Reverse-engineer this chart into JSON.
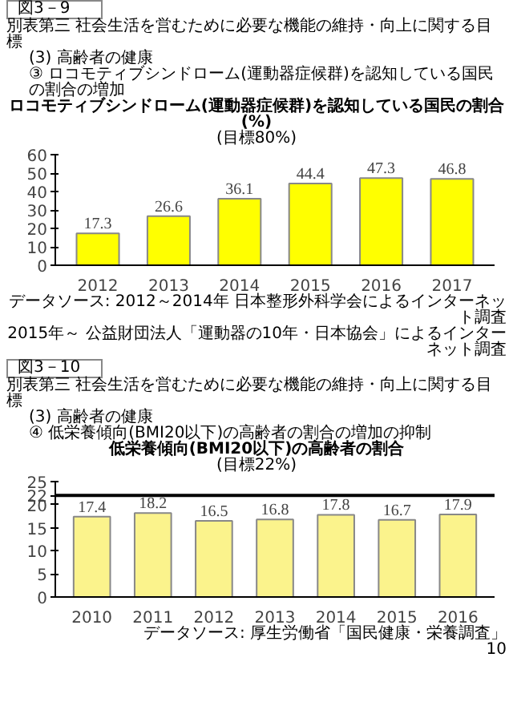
{
  "chart_data": [
    {
      "type": "bar",
      "title": "ロコモティブシンドローム(運動器症候群)を認知している国民の割合(%)",
      "subtitle": "(目標80%)",
      "annotations": [
        "図3－9",
        "別表第三 社会生活を営むために必要な機能の維持・向上に関する目標",
        "(3) 高齢者の健康",
        "③ ロコモティブシンドローム(運動器症候群)を認知している国民の割合の増加",
        "データソース: 2012～2014年 日本整形外科学会によるインターネット調査",
        "2015年～ 公益財団法人「運動器の10年・日本協会」によるインターネット調査"
      ],
      "categories": [
        "2012",
        "2013",
        "2014",
        "2015",
        "2016",
        "2017"
      ],
      "values": [
        17.3,
        26.6,
        36.1,
        44.4,
        47.3,
        46.8
      ],
      "color": "#ffff00",
      "data_labels": true,
      "ylim": [
        0,
        60
      ],
      "yticks": [
        0,
        10,
        20,
        30,
        40,
        50,
        60
      ],
      "grid": false
    },
    {
      "type": "bar",
      "title": "低栄養傾向(BMI20以下)の高齢者の割合",
      "subtitle": "(目標22%)",
      "annotations": [
        "図3－10",
        "別表第三 社会生活を営むために必要な機能の維持・向上に関する目標",
        "(3) 高齢者の健康",
        "④ 低栄養傾向(BMI20以下)の高齢者の割合の増加の抑制",
        "データソース: 厚生労働省「国民健康・栄養調査」",
        "10"
      ],
      "categories": [
        "2010",
        "2011",
        "2012",
        "2013",
        "2014",
        "2015",
        "2016"
      ],
      "values": [
        17.4,
        18.2,
        16.5,
        16.8,
        17.8,
        16.7,
        17.9
      ],
      "color": "#fbf38c",
      "data_labels": true,
      "ylim": [
        0,
        25
      ],
      "yticks": [
        0,
        5,
        10,
        15,
        20,
        25
      ],
      "grid": false,
      "ref_lines": [
        {
          "axis": "y",
          "value": 22,
          "label": "22",
          "color": "#000000"
        }
      ]
    }
  ]
}
